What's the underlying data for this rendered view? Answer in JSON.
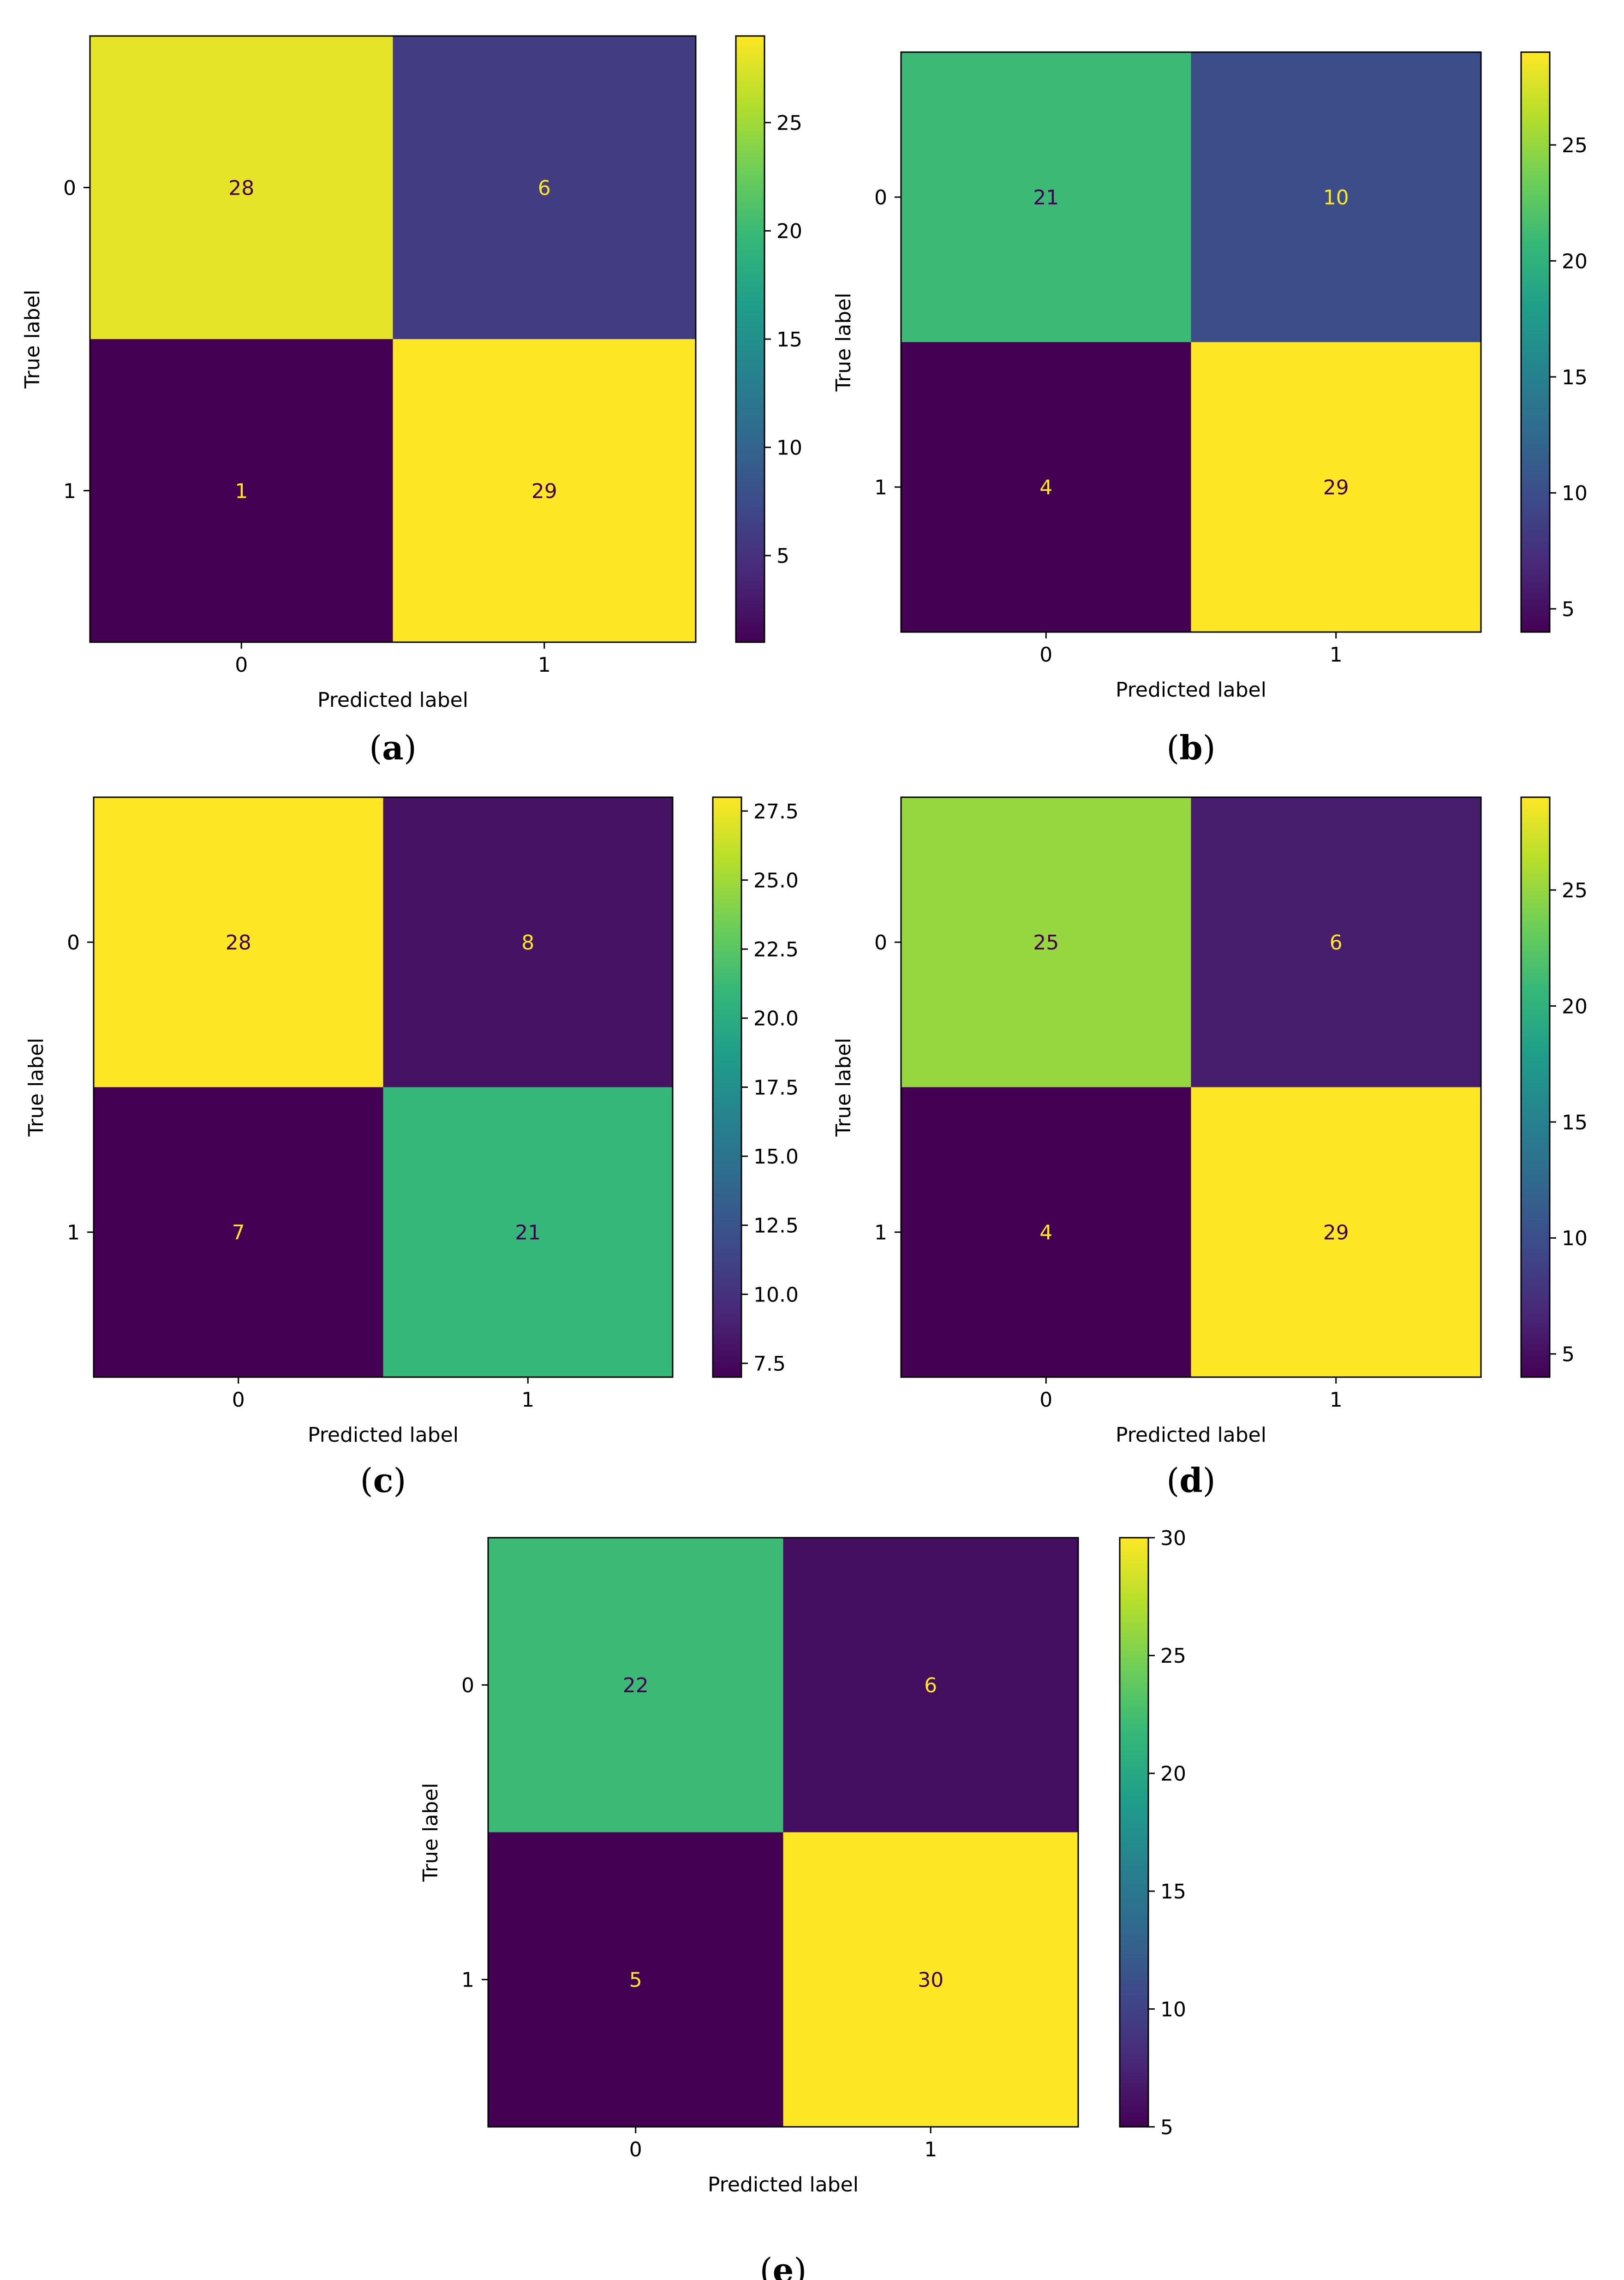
{
  "figure": {
    "colors": {
      "viridis": [
        "#440154",
        "#482878",
        "#3e4989",
        "#31688e",
        "#26828e",
        "#1f9e89",
        "#35b779",
        "#6ece58",
        "#b5de2b",
        "#fde725"
      ],
      "dark_text": "#440154",
      "light_text": "#fde725",
      "axis": "#000000"
    }
  },
  "chart_data": [
    {
      "type": "heatmap",
      "panel": "a",
      "caption": {
        "open": "(",
        "letter": "a",
        "close": ")"
      },
      "x_categories": [
        "0",
        "1"
      ],
      "y_categories": [
        "0",
        "1"
      ],
      "matrix": [
        [
          28,
          6
        ],
        [
          1,
          29
        ]
      ],
      "xlabel": "Predicted label",
      "ylabel": "True label",
      "colorbar": {
        "vmin": 1,
        "vmax": 29,
        "ticks": [
          5,
          10,
          15,
          20,
          25
        ],
        "tick_labels": [
          "5",
          "10",
          "15",
          "20",
          "25"
        ]
      }
    },
    {
      "type": "heatmap",
      "panel": "b",
      "caption": {
        "open": "(",
        "letter": "b",
        "close": ")"
      },
      "x_categories": [
        "0",
        "1"
      ],
      "y_categories": [
        "0",
        "1"
      ],
      "matrix": [
        [
          21,
          10
        ],
        [
          4,
          29
        ]
      ],
      "xlabel": "Predicted label",
      "ylabel": "True label",
      "colorbar": {
        "vmin": 4,
        "vmax": 29,
        "ticks": [
          5,
          10,
          15,
          20,
          25
        ],
        "tick_labels": [
          "5",
          "10",
          "15",
          "20",
          "25"
        ]
      }
    },
    {
      "type": "heatmap",
      "panel": "c",
      "caption": {
        "open": "(",
        "letter": "c",
        "close": ")"
      },
      "x_categories": [
        "0",
        "1"
      ],
      "y_categories": [
        "0",
        "1"
      ],
      "matrix": [
        [
          28,
          8
        ],
        [
          7,
          21
        ]
      ],
      "xlabel": "Predicted label",
      "ylabel": "True label",
      "colorbar": {
        "vmin": 7,
        "vmax": 28,
        "ticks": [
          7.5,
          10,
          12.5,
          15,
          17.5,
          20,
          22.5,
          25,
          27.5
        ],
        "tick_labels": [
          "7.5",
          "10.0",
          "12.5",
          "15.0",
          "17.5",
          "20.0",
          "22.5",
          "25.0",
          "27.5"
        ]
      }
    },
    {
      "type": "heatmap",
      "panel": "d",
      "caption": {
        "open": "(",
        "letter": "d",
        "close": ")"
      },
      "x_categories": [
        "0",
        "1"
      ],
      "y_categories": [
        "0",
        "1"
      ],
      "matrix": [
        [
          25,
          6
        ],
        [
          4,
          29
        ]
      ],
      "xlabel": "Predicted label",
      "ylabel": "True label",
      "colorbar": {
        "vmin": 4,
        "vmax": 29,
        "ticks": [
          5,
          10,
          15,
          20,
          25
        ],
        "tick_labels": [
          "5",
          "10",
          "15",
          "20",
          "25"
        ]
      }
    },
    {
      "type": "heatmap",
      "panel": "e",
      "caption": {
        "open": "(",
        "letter": "e",
        "close": ")"
      },
      "x_categories": [
        "0",
        "1"
      ],
      "y_categories": [
        "0",
        "1"
      ],
      "matrix": [
        [
          22,
          6
        ],
        [
          5,
          30
        ]
      ],
      "xlabel": "Predicted label",
      "ylabel": "True label",
      "colorbar": {
        "vmin": 5,
        "vmax": 30,
        "ticks": [
          5,
          10,
          15,
          20,
          25,
          30
        ],
        "tick_labels": [
          "5",
          "10",
          "15",
          "20",
          "25",
          "30"
        ]
      }
    }
  ]
}
